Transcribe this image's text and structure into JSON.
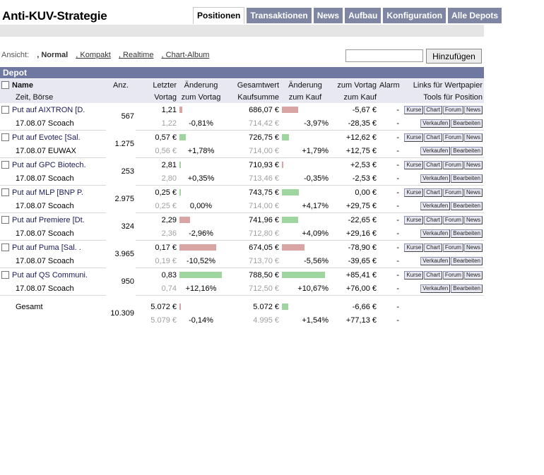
{
  "app": {
    "title": "Anti-KUV-Strategie"
  },
  "tabs": [
    {
      "label": "Positionen",
      "active": true
    },
    {
      "label": "Transaktionen",
      "active": false
    },
    {
      "label": "News",
      "active": false
    },
    {
      "label": "Aufbau",
      "active": false
    },
    {
      "label": "Konfiguration",
      "active": false
    },
    {
      "label": "Alle Depots",
      "active": false
    }
  ],
  "view": {
    "label": "Ansicht:",
    "options": [
      {
        "label": "Normal",
        "active": true
      },
      {
        "label": "Kompakt",
        "active": false
      },
      {
        "label": "Realtime",
        "active": false
      },
      {
        "label": "Chart-Album",
        "active": false
      }
    ]
  },
  "search": {
    "value": "",
    "placeholder": ""
  },
  "add_button": "Hinzufügen",
  "depot": {
    "title": "Depot",
    "headers": {
      "name": "Name",
      "name2": "Zeit, Börse",
      "anz": "Anz.",
      "letzter": "Letzter",
      "letzter2": "Vortag",
      "aenderung": "Änderung",
      "aenderung2": "zum Vortag",
      "gesamtwert": "Gesamtwert",
      "gesamtwert2": "Kaufsumme",
      "aenderung_kauf": "Änderung",
      "aenderung_kauf2": "zum Kauf",
      "zum_vortag": "zum Vortag",
      "zum_kauf": "zum Kauf",
      "alarm": "Alarm",
      "links": "Links für Wertpapier",
      "tools": "Tools für Position"
    },
    "tool_labels": {
      "kurse": "Kurse",
      "chart": "Chart",
      "forum": "Forum",
      "news": "News",
      "verkaufen": "Verkaufen",
      "bearbeiten": "Bearbeiten"
    },
    "positions": [
      {
        "name": "Put auf AIXTRON [D.",
        "meta": "17.08.07 Scoach",
        "anz": "567",
        "letzter": "1,21",
        "vortag": "1,22",
        "chg_day_pct": "-0,81%",
        "chg_day_val": -0.81,
        "gesamtwert": "686,07 €",
        "kaufsumme": "714,42 €",
        "chg_buy_pct": "-3,97%",
        "chg_buy_val": -3.97,
        "zum_vortag": "-5,67 €",
        "zum_kauf": "-28,35 €",
        "alarm1": "-",
        "alarm2": "-"
      },
      {
        "name": "Put auf Evotec [Sal.",
        "meta": "17.08.07 EUWAX",
        "anz": "1.275",
        "letzter": "0,57 €",
        "vortag": "0,56 €",
        "chg_day_pct": "+1,78%",
        "chg_day_val": 1.78,
        "gesamtwert": "726,75 €",
        "kaufsumme": "714,00 €",
        "chg_buy_pct": "+1,79%",
        "chg_buy_val": 1.79,
        "zum_vortag": "+12,62 €",
        "zum_kauf": "+12,75 €",
        "alarm1": "-",
        "alarm2": "-"
      },
      {
        "name": "Put auf GPC Biotech.",
        "meta": "17.08.07 Scoach",
        "anz": "253",
        "letzter": "2,81",
        "vortag": "2,80",
        "chg_day_pct": "+0,35%",
        "chg_day_val": 0.35,
        "gesamtwert": "710,93 €",
        "kaufsumme": "713,46 €",
        "chg_buy_pct": "-0,35%",
        "chg_buy_val": -0.35,
        "zum_vortag": "+2,53 €",
        "zum_kauf": "-2,53 €",
        "alarm1": "-",
        "alarm2": "-"
      },
      {
        "name": "Put auf MLP [BNP P.",
        "meta": "17.08.07 Scoach",
        "anz": "2.975",
        "letzter": "0,25 €",
        "vortag": "0,25 €",
        "chg_day_pct": "0,00%",
        "chg_day_val": 0,
        "gesamtwert": "743,75 €",
        "kaufsumme": "714,00 €",
        "chg_buy_pct": "+4,17%",
        "chg_buy_val": 4.17,
        "zum_vortag": "0,00 €",
        "zum_kauf": "+29,75 €",
        "alarm1": "-",
        "alarm2": "-"
      },
      {
        "name": "Put auf Premiere [Dt.",
        "meta": "17.08.07 Scoach",
        "anz": "324",
        "letzter": "2,29",
        "vortag": "2,36",
        "chg_day_pct": "-2,96%",
        "chg_day_val": -2.96,
        "gesamtwert": "741,96 €",
        "kaufsumme": "712,80 €",
        "chg_buy_pct": "+4,09%",
        "chg_buy_val": 4.09,
        "zum_vortag": "-22,65 €",
        "zum_kauf": "+29,16 €",
        "alarm1": "-",
        "alarm2": "-"
      },
      {
        "name": "Put auf Puma [Sal. .",
        "meta": "17.08.07 Scoach",
        "anz": "3.965",
        "letzter": "0,17 €",
        "vortag": "0,19 €",
        "chg_day_pct": "-10,52%",
        "chg_day_val": -10.52,
        "gesamtwert": "674,05 €",
        "kaufsumme": "713,70 €",
        "chg_buy_pct": "-5,56%",
        "chg_buy_val": -5.56,
        "zum_vortag": "-78,90 €",
        "zum_kauf": "-39,65 €",
        "alarm1": "-",
        "alarm2": "-"
      },
      {
        "name": "Put auf QS Communi.",
        "meta": "17.08.07 Scoach",
        "anz": "950",
        "letzter": "0,83",
        "vortag": "0,74",
        "chg_day_pct": "+12,16%",
        "chg_day_val": 12.16,
        "gesamtwert": "788,50 €",
        "kaufsumme": "712,50 €",
        "chg_buy_pct": "+10,67%",
        "chg_buy_val": 10.67,
        "zum_vortag": "+85,41 €",
        "zum_kauf": "+76,00 €",
        "alarm1": "-",
        "alarm2": "-"
      }
    ],
    "total": {
      "label": "Gesamt",
      "anz": "10.309",
      "letzter": "5.072 €",
      "vortag": "5.079 €",
      "chg_day_pct": "-0,14%",
      "chg_day_val": -0.14,
      "gesamtwert": "5.072 €",
      "kaufsumme": "4.995 €",
      "chg_buy_pct": "+1,54%",
      "chg_buy_val": 1.54,
      "zum_vortag": "-6,66 €",
      "zum_kauf": "+77,13 €",
      "alarm1": "-",
      "alarm2": "-"
    }
  }
}
